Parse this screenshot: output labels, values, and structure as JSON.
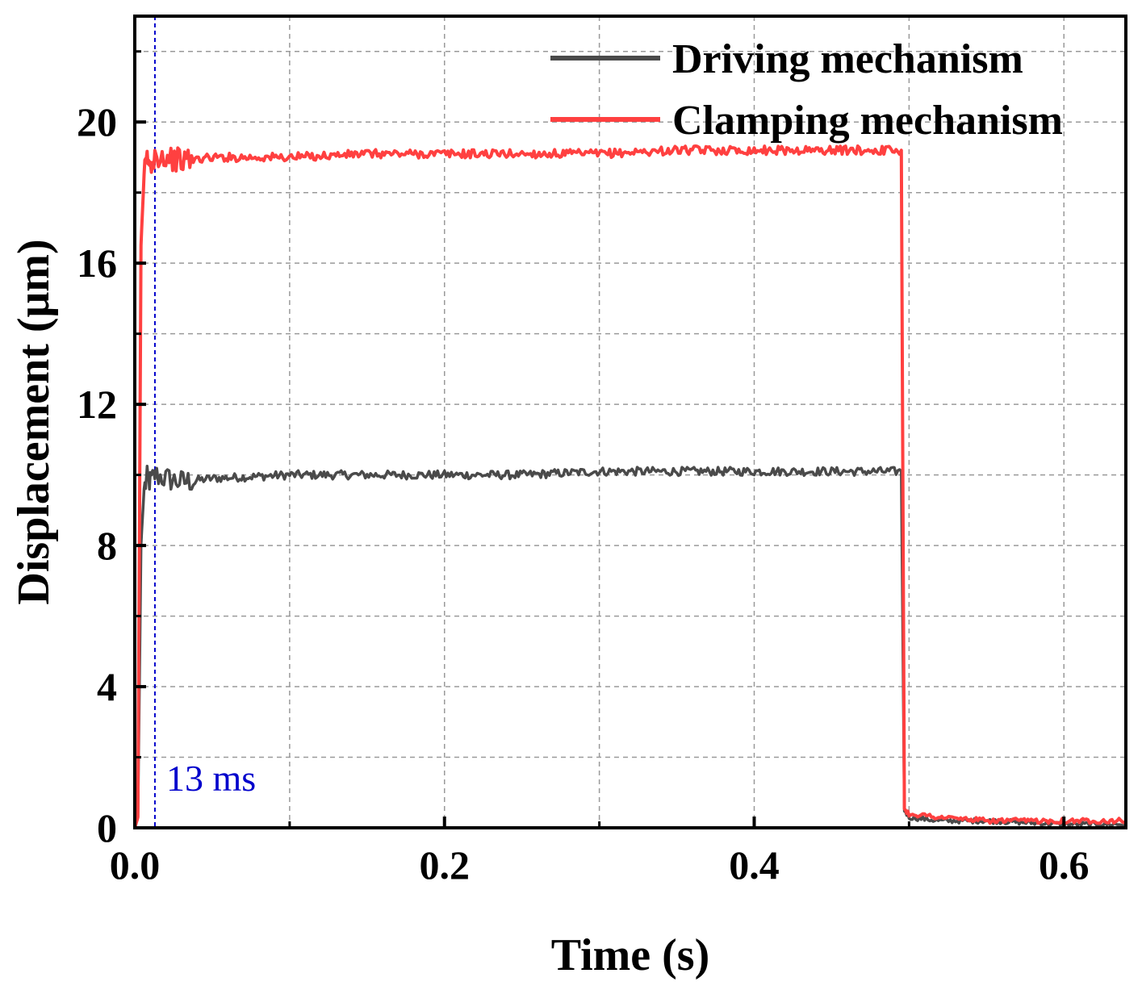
{
  "chart_data": {
    "type": "line",
    "title": "",
    "xlabel": "Time (s)",
    "ylabel": "Displacement (μm)",
    "xlim": [
      0,
      0.64
    ],
    "ylim": [
      0,
      23
    ],
    "x_ticks": [
      0.0,
      0.2,
      0.4,
      0.6
    ],
    "x_tick_labels": [
      "0.0",
      "0.2",
      "0.4",
      "0.6"
    ],
    "y_ticks": [
      0,
      4,
      8,
      12,
      16,
      20
    ],
    "y_tick_labels": [
      "0",
      "4",
      "8",
      "12",
      "16",
      "20"
    ],
    "grid": true,
    "legend_position": "top-right",
    "series": [
      {
        "name": "Driving mechanism",
        "color": "#4a4a4a",
        "x": [
          0.0,
          0.002,
          0.004,
          0.006,
          0.008,
          0.01,
          0.013,
          0.02,
          0.03,
          0.05,
          0.1,
          0.15,
          0.2,
          0.25,
          0.3,
          0.35,
          0.4,
          0.45,
          0.495,
          0.497,
          0.5,
          0.52,
          0.55,
          0.6,
          0.64
        ],
        "values": [
          0.0,
          0.3,
          8.0,
          9.6,
          9.9,
          9.8,
          10.0,
          9.9,
          9.8,
          9.9,
          10.0,
          10.0,
          10.0,
          10.0,
          10.1,
          10.1,
          10.1,
          10.1,
          10.1,
          0.5,
          0.3,
          0.2,
          0.2,
          0.1,
          0.1
        ]
      },
      {
        "name": "Clamping mechanism",
        "color": "#ff4040",
        "x": [
          0.0,
          0.002,
          0.004,
          0.006,
          0.008,
          0.01,
          0.013,
          0.02,
          0.03,
          0.05,
          0.1,
          0.15,
          0.2,
          0.25,
          0.3,
          0.35,
          0.4,
          0.45,
          0.495,
          0.497,
          0.5,
          0.52,
          0.55,
          0.6,
          0.64
        ],
        "values": [
          0.0,
          0.3,
          16.5,
          18.5,
          19.0,
          18.7,
          19.1,
          19.0,
          18.9,
          19.0,
          19.0,
          19.1,
          19.1,
          19.1,
          19.1,
          19.2,
          19.2,
          19.2,
          19.2,
          0.5,
          0.4,
          0.3,
          0.2,
          0.2,
          0.2
        ]
      }
    ],
    "annotations": [
      {
        "text": "13 ms",
        "x": 0.013,
        "color": "#0000cc"
      }
    ]
  }
}
